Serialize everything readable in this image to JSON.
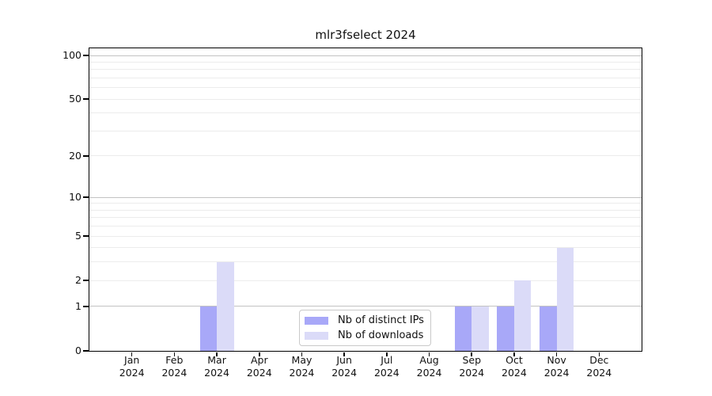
{
  "chart_data": {
    "type": "bar",
    "title": "mlr3fselect 2024",
    "year": "2024",
    "categories": [
      "Jan",
      "Feb",
      "Mar",
      "Apr",
      "May",
      "Jun",
      "Jul",
      "Aug",
      "Sep",
      "Oct",
      "Nov",
      "Dec"
    ],
    "series": [
      {
        "name": "Nb of distinct IPs",
        "color": "#a8a8f8",
        "values": [
          0,
          0,
          1,
          0,
          0,
          0,
          0,
          0,
          1,
          1,
          1,
          0
        ]
      },
      {
        "name": "Nb of downloads",
        "color": "#dbdbf8",
        "values": [
          0,
          0,
          3,
          0,
          0,
          0,
          0,
          0,
          1,
          2,
          4,
          0
        ]
      }
    ],
    "xlabel": "",
    "ylabel": "",
    "yscale": "log1p",
    "ylim": [
      0,
      100
    ],
    "yticks": [
      0,
      1,
      2,
      5,
      10,
      20,
      50,
      100
    ],
    "grid_major": [
      1,
      10,
      100
    ],
    "grid_minor": [
      2,
      3,
      4,
      5,
      6,
      7,
      8,
      9,
      20,
      30,
      40,
      50,
      60,
      70,
      80,
      90
    ],
    "legend_position": "bottom-center",
    "colors": {
      "grid_major": "#c3c3c3",
      "grid_minor": "#ececec",
      "axis": "#000000",
      "legend_border": "#c9c9c9"
    }
  }
}
